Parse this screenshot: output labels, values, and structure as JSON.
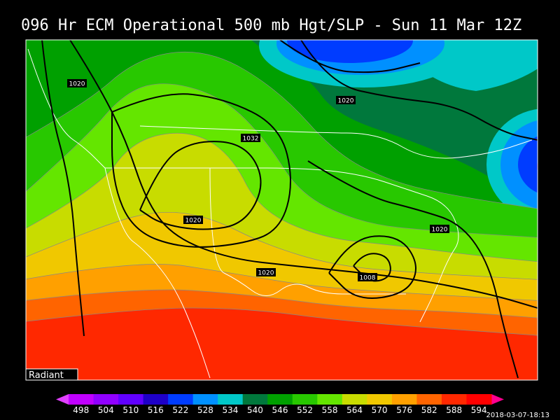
{
  "header": {
    "title": "096 Hr ECM Operational 500 mb Hgt/SLP - Sun 11 Mar 12Z"
  },
  "map": {
    "pressure_labels": [
      "1020",
      "1020",
      "1032",
      "1020",
      "1020",
      "1020",
      "1008"
    ],
    "credit": "Radiant"
  },
  "colorbar": {
    "levels": [
      498,
      504,
      510,
      516,
      522,
      528,
      534,
      540,
      546,
      552,
      558,
      564,
      570,
      576,
      582,
      588,
      594
    ],
    "colors": [
      "#c000ff",
      "#9000ff",
      "#6000ff",
      "#1e00c8",
      "#003cff",
      "#0090ff",
      "#00c8c8",
      "#00783c",
      "#00a000",
      "#28c800",
      "#64e600",
      "#c8dc00",
      "#f0c800",
      "#ffa000",
      "#ff6400",
      "#ff2800",
      "#ff0000"
    ],
    "end_colors": [
      "#e040ff",
      "#ff0090"
    ]
  },
  "timestamp": "2018-03-07-18:13"
}
